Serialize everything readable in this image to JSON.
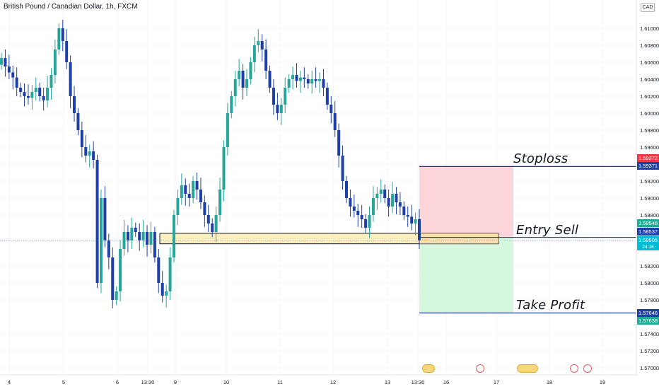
{
  "header": {
    "title": "British Pound / Canadian Dollar, 1h, FXCM",
    "currency": "CAD"
  },
  "annotations": {
    "stoploss": "Stoploss",
    "entry": "Entry Sell",
    "take_profit": "Take Profit"
  },
  "price_labels": {
    "stop_red": "1.59372",
    "stop_blue": "1.59371",
    "green_top": "1.58546",
    "entry": "1.58537",
    "last": "1.58505",
    "countdown": "24:16",
    "tp": "1.57646",
    "tp_green": "1.57638"
  },
  "colors": {
    "bull": "#26a69a",
    "bear": "#1e3fa8",
    "stop_zone": "#fbd5d8",
    "profit_zone": "#d6f8df",
    "level_line": "#1e3fa8",
    "zone_box": "#fbefbf",
    "red_label": "#f23645",
    "blue_label": "#1e3fa8",
    "green_label": "#22ab94",
    "last_label": "#00bcd4"
  },
  "chart_data": {
    "type": "candlestick",
    "y_axis": {
      "min": 1.569,
      "max": 1.614,
      "ticks": [
        "1.61000",
        "1.60800",
        "1.60600",
        "1.60400",
        "1.60200",
        "1.60000",
        "1.59800",
        "1.59600",
        "1.59400",
        "1.59200",
        "1.59000",
        "1.58800",
        "1.58200",
        "1.58000",
        "1.57800",
        "1.57400",
        "1.57200",
        "1.57000"
      ]
    },
    "x_axis": {
      "ticks": [
        "4",
        "5",
        "6",
        "13:30",
        "9",
        "10",
        "11",
        "12",
        "13",
        "13:30",
        "16",
        "17",
        "18",
        "19"
      ]
    },
    "levels": {
      "stoploss": 1.59372,
      "entry": 1.58537,
      "take_profit": 1.57646
    },
    "support_zone": {
      "top": 1.58584,
      "bottom": 1.58461
    },
    "close_series": [
      1.6065,
      1.6055,
      1.6048,
      1.6042,
      1.603,
      1.6025,
      1.602,
      1.6018,
      1.6025,
      1.603,
      1.602,
      1.6015,
      1.603,
      1.6045,
      1.6075,
      1.61,
      1.6085,
      1.606,
      1.602,
      1.6,
      1.598,
      1.596,
      1.595,
      1.5955,
      1.5945,
      1.58,
      1.59,
      1.585,
      1.583,
      1.578,
      1.579,
      1.584,
      1.586,
      1.585,
      1.5865,
      1.586,
      1.585,
      1.586,
      1.5845,
      1.586,
      1.583,
      1.58,
      1.5785,
      1.579,
      1.583,
      1.588,
      1.59,
      1.5915,
      1.5905,
      1.59,
      1.592,
      1.591,
      1.5895,
      1.588,
      1.587,
      1.586,
      1.588,
      1.591,
      1.596,
      1.6,
      1.602,
      1.604,
      1.605,
      1.603,
      1.604,
      1.606,
      1.608,
      1.6085,
      1.6075,
      1.605,
      1.603,
      1.601,
      1.6,
      1.601,
      1.603,
      1.604,
      1.6045,
      1.6038,
      1.6042,
      1.604,
      1.6035,
      1.604,
      1.6038,
      1.604,
      1.603,
      1.601,
      1.6,
      1.598,
      1.595,
      1.592,
      1.59,
      1.589,
      1.5885,
      1.588,
      1.5875,
      1.5865,
      1.588,
      1.59,
      1.5905,
      1.591,
      1.59,
      1.589,
      1.5905,
      1.5895,
      1.589,
      1.588,
      1.5878,
      1.587,
      1.5875,
      1.585
    ]
  }
}
